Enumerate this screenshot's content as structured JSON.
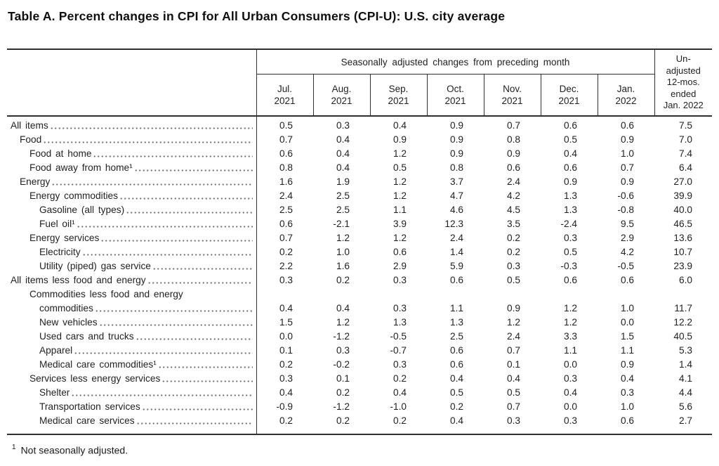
{
  "title": "Table A. Percent changes in CPI for All Urban Consumers (CPI-U): U.S. city average",
  "table": {
    "group_header": "Seasonally adjusted changes from preceding month",
    "columns": [
      "Jul.\n2021",
      "Aug.\n2021",
      "Sep.\n2021",
      "Oct.\n2021",
      "Nov.\n2021",
      "Dec.\n2021",
      "Jan.\n2022"
    ],
    "last_column_header": "Un-\nadjusted\n12-mos.\nended\nJan. 2022",
    "rows": [
      {
        "label": "All items",
        "indent": 0,
        "values": [
          "0.5",
          "0.3",
          "0.4",
          "0.9",
          "0.7",
          "0.6",
          "0.6",
          "7.5"
        ]
      },
      {
        "label": "Food",
        "indent": 1,
        "values": [
          "0.7",
          "0.4",
          "0.9",
          "0.9",
          "0.8",
          "0.5",
          "0.9",
          "7.0"
        ]
      },
      {
        "label": "Food at home",
        "indent": 2,
        "values": [
          "0.6",
          "0.4",
          "1.2",
          "0.9",
          "0.9",
          "0.4",
          "1.0",
          "7.4"
        ]
      },
      {
        "label": "Food away from home¹",
        "indent": 2,
        "values": [
          "0.8",
          "0.4",
          "0.5",
          "0.8",
          "0.6",
          "0.6",
          "0.7",
          "6.4"
        ]
      },
      {
        "label": "Energy",
        "indent": 1,
        "values": [
          "1.6",
          "1.9",
          "1.2",
          "3.7",
          "2.4",
          "0.9",
          "0.9",
          "27.0"
        ]
      },
      {
        "label": "Energy commodities",
        "indent": 2,
        "values": [
          "2.4",
          "2.5",
          "1.2",
          "4.7",
          "4.2",
          "1.3",
          "-0.6",
          "39.9"
        ]
      },
      {
        "label": "Gasoline (all types)",
        "indent": 3,
        "values": [
          "2.5",
          "2.5",
          "1.1",
          "4.6",
          "4.5",
          "1.3",
          "-0.8",
          "40.0"
        ]
      },
      {
        "label": "Fuel oil¹",
        "indent": 3,
        "values": [
          "0.6",
          "-2.1",
          "3.9",
          "12.3",
          "3.5",
          "-2.4",
          "9.5",
          "46.5"
        ]
      },
      {
        "label": "Energy services",
        "indent": 2,
        "values": [
          "0.7",
          "1.2",
          "1.2",
          "2.4",
          "0.2",
          "0.3",
          "2.9",
          "13.6"
        ]
      },
      {
        "label": "Electricity",
        "indent": 3,
        "values": [
          "0.2",
          "1.0",
          "0.6",
          "1.4",
          "0.2",
          "0.5",
          "4.2",
          "10.7"
        ]
      },
      {
        "label": "Utility (piped) gas service",
        "indent": 3,
        "values": [
          "2.2",
          "1.6",
          "2.9",
          "5.9",
          "0.3",
          "-0.3",
          "-0.5",
          "23.9"
        ]
      },
      {
        "label": "All items less food and energy",
        "indent": 0,
        "values": [
          "0.3",
          "0.2",
          "0.3",
          "0.6",
          "0.5",
          "0.6",
          "0.6",
          "6.0"
        ]
      },
      {
        "label": "Commodities less food and energy",
        "label2": "commodities",
        "indent": 2,
        "values": [
          "0.4",
          "0.4",
          "0.3",
          "1.1",
          "0.9",
          "1.2",
          "1.0",
          "11.7"
        ]
      },
      {
        "label": "New vehicles",
        "indent": 3,
        "values": [
          "1.5",
          "1.2",
          "1.3",
          "1.3",
          "1.2",
          "1.2",
          "0.0",
          "12.2"
        ]
      },
      {
        "label": "Used cars and trucks",
        "indent": 3,
        "values": [
          "0.0",
          "-1.2",
          "-0.5",
          "2.5",
          "2.4",
          "3.3",
          "1.5",
          "40.5"
        ]
      },
      {
        "label": "Apparel",
        "indent": 3,
        "values": [
          "0.1",
          "0.3",
          "-0.7",
          "0.6",
          "0.7",
          "1.1",
          "1.1",
          "5.3"
        ]
      },
      {
        "label": "Medical care commodities¹",
        "indent": 3,
        "values": [
          "0.2",
          "-0.2",
          "0.3",
          "0.6",
          "0.1",
          "0.0",
          "0.9",
          "1.4"
        ]
      },
      {
        "label": "Services less energy services",
        "indent": 2,
        "values": [
          "0.3",
          "0.1",
          "0.2",
          "0.4",
          "0.4",
          "0.3",
          "0.4",
          "4.1"
        ]
      },
      {
        "label": "Shelter",
        "indent": 3,
        "values": [
          "0.4",
          "0.2",
          "0.4",
          "0.5",
          "0.5",
          "0.4",
          "0.3",
          "4.4"
        ]
      },
      {
        "label": "Transportation services",
        "indent": 3,
        "values": [
          "-0.9",
          "-1.2",
          "-1.0",
          "0.2",
          "0.7",
          "0.0",
          "1.0",
          "5.6"
        ]
      },
      {
        "label": "Medical care services",
        "indent": 3,
        "values": [
          "0.2",
          "0.2",
          "0.2",
          "0.4",
          "0.3",
          "0.3",
          "0.6",
          "2.7"
        ]
      }
    ]
  },
  "footnote": {
    "marker": "1",
    "text": "Not seasonally adjusted."
  },
  "colors": {
    "text": "#222222",
    "rule": "#2f2f2f",
    "background": "#ffffff"
  }
}
